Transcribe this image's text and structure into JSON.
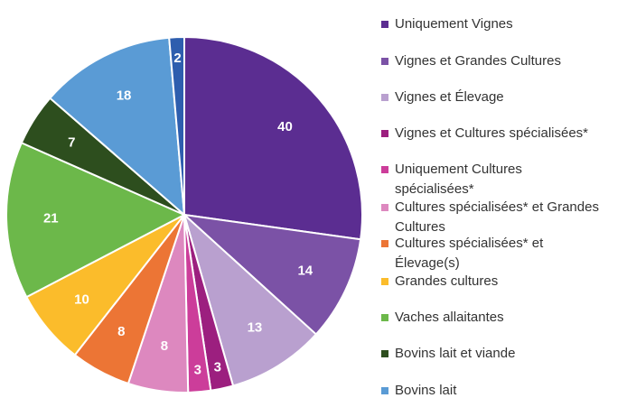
{
  "chart_data": {
    "type": "pie",
    "categories": [
      "Uniquement Vignes",
      "Vignes et Grandes Cultures",
      "Vignes et Élevage",
      "Vignes et Cultures spécialisées*",
      "Uniquement Cultures spécialisées*",
      "Cultures spécialisées* et Grandes Cultures",
      "Cultures spécialisées* et Élevage(s)",
      "Grandes cultures",
      "Vaches allaitantes",
      "Bovins lait et viande",
      "Bovins lait",
      null
    ],
    "values": [
      40,
      14,
      13,
      3,
      3,
      8,
      8,
      10,
      21,
      7,
      18,
      2
    ],
    "colors": [
      "#5b2d91",
      "#7b52a6",
      "#b9a0cf",
      "#9c1f7f",
      "#cc3d9a",
      "#dd88bf",
      "#ec7535",
      "#fbbc2b",
      "#6cb84a",
      "#2d4e1e",
      "#5a9bd5",
      "#2e5eae"
    ],
    "legend": "right"
  }
}
